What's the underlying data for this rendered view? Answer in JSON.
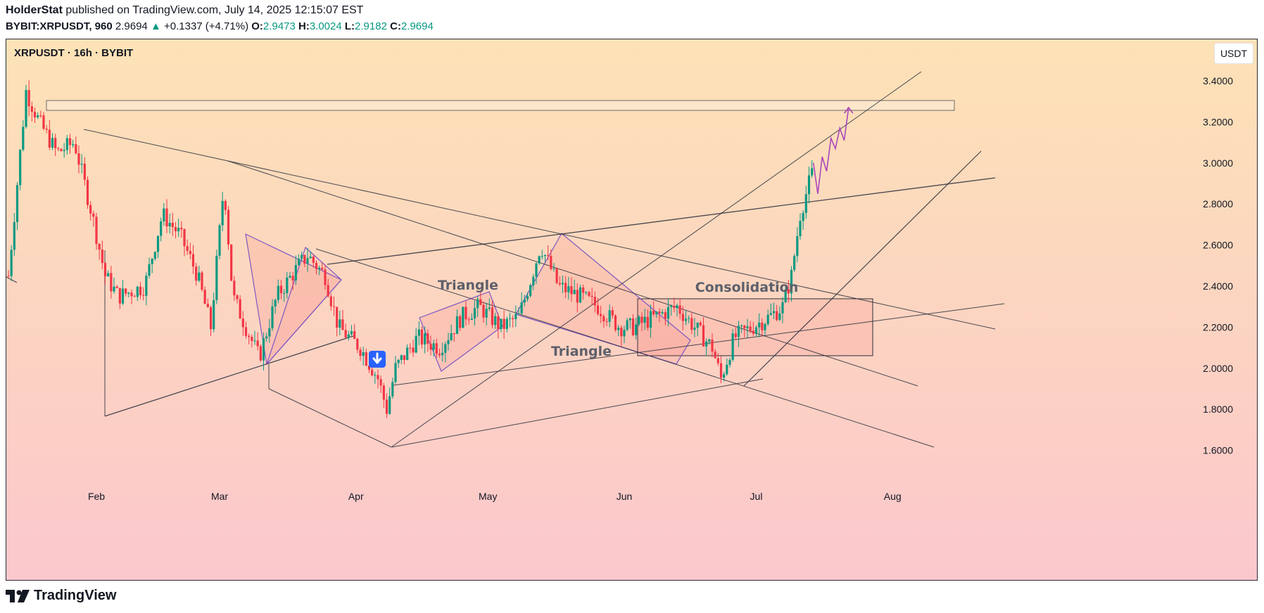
{
  "header": {
    "author": "HolderStat",
    "published_text": "published on TradingView.com, July 14, 2025 12:15:07 EST",
    "symbol_line": "BYBIT:XRPUSDT, 960",
    "last_price": "2.9694",
    "change_text": "+0.1337 (+4.71%)",
    "o_label": "O:",
    "o_value": "2.9473",
    "h_label": "H:",
    "h_value": "3.0024",
    "l_label": "L:",
    "l_value": "2.9182",
    "c_label": "C:",
    "c_value": "2.9694"
  },
  "chart_title": "XRPUSDT · 16h · BYBIT",
  "unit_button": "USDT",
  "footer_brand": "TradingView",
  "colors": {
    "up": "#089981",
    "down": "#f23645",
    "pattern": "#7e57c2",
    "line": "#2a2e39"
  },
  "chart_data": {
    "type": "candlestick",
    "symbol": "XRPUSDT",
    "timeframe": "16h",
    "exchange": "BYBIT",
    "y_ticks": [
      "3.4000",
      "3.2000",
      "3.0000",
      "2.8000",
      "2.6000",
      "2.4000",
      "2.2000",
      "2.0000",
      "1.8000",
      "1.6000"
    ],
    "x_ticks": [
      "Feb",
      "Mar",
      "Apr",
      "May",
      "Jun",
      "Jul",
      "Aug"
    ],
    "ylim": [
      1.35,
      3.6
    ],
    "price_path": [
      {
        "date": "2025-01-12",
        "price": 2.45
      },
      {
        "date": "2025-01-14",
        "price": 2.9
      },
      {
        "date": "2025-01-16",
        "price": 3.35
      },
      {
        "date": "2025-01-19",
        "price": 3.2
      },
      {
        "date": "2025-01-23",
        "price": 3.05
      },
      {
        "date": "2025-01-27",
        "price": 3.1
      },
      {
        "date": "2025-01-31",
        "price": 2.75
      },
      {
        "date": "2025-02-03",
        "price": 2.45
      },
      {
        "date": "2025-02-06",
        "price": 2.35
      },
      {
        "date": "2025-02-12",
        "price": 2.4
      },
      {
        "date": "2025-02-16",
        "price": 2.75
      },
      {
        "date": "2025-02-20",
        "price": 2.65
      },
      {
        "date": "2025-02-24",
        "price": 2.45
      },
      {
        "date": "2025-02-27",
        "price": 2.2
      },
      {
        "date": "2025-03-02",
        "price": 2.9
      },
      {
        "date": "2025-03-04",
        "price": 2.35
      },
      {
        "date": "2025-03-10",
        "price": 2.05
      },
      {
        "date": "2025-03-14",
        "price": 2.35
      },
      {
        "date": "2025-03-19",
        "price": 2.5
      },
      {
        "date": "2025-03-21",
        "price": 2.55
      },
      {
        "date": "2025-03-25",
        "price": 2.45
      },
      {
        "date": "2025-03-28",
        "price": 2.2
      },
      {
        "date": "2025-04-02",
        "price": 2.1
      },
      {
        "date": "2025-04-06",
        "price": 1.95
      },
      {
        "date": "2025-04-08",
        "price": 1.8
      },
      {
        "date": "2025-04-10",
        "price": 2.0
      },
      {
        "date": "2025-04-15",
        "price": 2.15
      },
      {
        "date": "2025-04-20",
        "price": 2.1
      },
      {
        "date": "2025-04-25",
        "price": 2.25
      },
      {
        "date": "2025-04-29",
        "price": 2.3
      },
      {
        "date": "2025-05-04",
        "price": 2.2
      },
      {
        "date": "2025-05-08",
        "price": 2.25
      },
      {
        "date": "2025-05-11",
        "price": 2.45
      },
      {
        "date": "2025-05-13",
        "price": 2.6
      },
      {
        "date": "2025-05-17",
        "price": 2.4
      },
      {
        "date": "2025-05-22",
        "price": 2.35
      },
      {
        "date": "2025-05-26",
        "price": 2.3
      },
      {
        "date": "2025-05-31",
        "price": 2.2
      },
      {
        "date": "2025-06-03",
        "price": 2.2
      },
      {
        "date": "2025-06-08",
        "price": 2.25
      },
      {
        "date": "2025-06-13",
        "price": 2.3
      },
      {
        "date": "2025-06-17",
        "price": 2.2
      },
      {
        "date": "2025-06-21",
        "price": 2.1
      },
      {
        "date": "2025-06-23",
        "price": 1.95
      },
      {
        "date": "2025-06-26",
        "price": 2.15
      },
      {
        "date": "2025-06-30",
        "price": 2.2
      },
      {
        "date": "2025-07-04",
        "price": 2.25
      },
      {
        "date": "2025-07-07",
        "price": 2.3
      },
      {
        "date": "2025-07-09",
        "price": 2.45
      },
      {
        "date": "2025-07-11",
        "price": 2.75
      },
      {
        "date": "2025-07-13",
        "price": 2.9
      },
      {
        "date": "2025-07-14",
        "price": 2.97
      }
    ],
    "annotations": [
      "Triangle",
      "Triangle",
      "Consolidation"
    ],
    "projected_path": [
      {
        "date": "2025-07-14",
        "price": 3.0
      },
      {
        "date": "2025-07-15",
        "price": 2.85
      },
      {
        "date": "2025-07-16",
        "price": 3.03
      },
      {
        "date": "2025-07-17",
        "price": 2.96
      },
      {
        "date": "2025-07-18",
        "price": 3.12
      },
      {
        "date": "2025-07-19",
        "price": 3.07
      },
      {
        "date": "2025-07-20",
        "price": 3.17
      },
      {
        "date": "2025-07-21",
        "price": 3.11
      },
      {
        "date": "2025-07-22",
        "price": 3.27
      }
    ]
  }
}
